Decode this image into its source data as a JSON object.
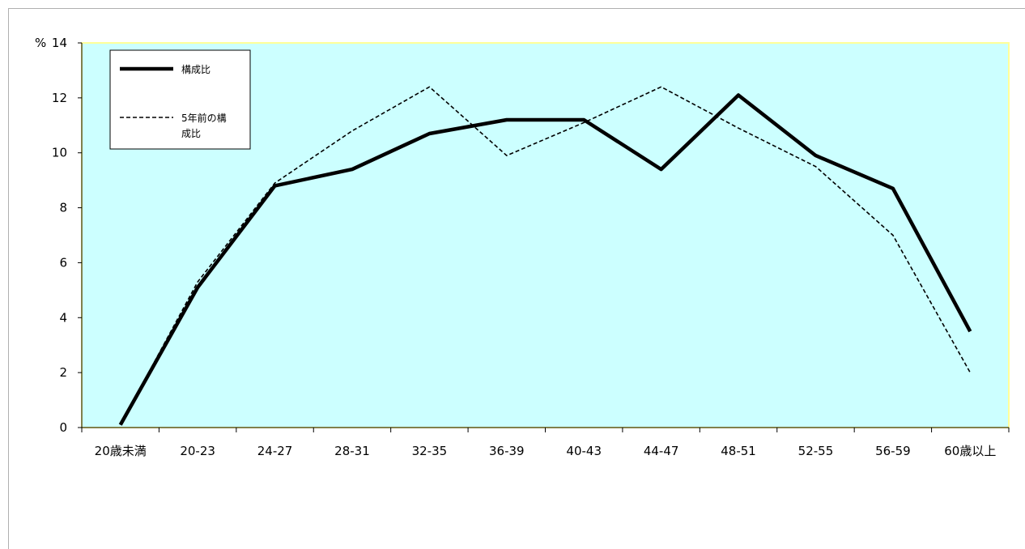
{
  "chart_data": {
    "type": "line",
    "title": "",
    "xlabel": "",
    "ylabel": "%",
    "ylim": [
      0,
      14
    ],
    "yticks": [
      0,
      2,
      4,
      6,
      8,
      10,
      12,
      14
    ],
    "categories": [
      "20歳未満",
      "20-23",
      "24-27",
      "28-31",
      "32-35",
      "36-39",
      "40-43",
      "44-47",
      "48-51",
      "52-55",
      "56-59",
      "60歳以上"
    ],
    "series": [
      {
        "name": "構成比",
        "style": "solid-thick",
        "color": "#000000",
        "values": [
          0.1,
          5.1,
          8.8,
          9.4,
          10.7,
          11.2,
          11.2,
          9.4,
          12.1,
          9.9,
          8.7,
          3.5
        ]
      },
      {
        "name": "5年前の構成比",
        "style": "dashed-thin",
        "color": "#000000",
        "values": [
          0.1,
          5.3,
          8.9,
          10.8,
          12.4,
          9.9,
          11.1,
          12.4,
          10.9,
          9.5,
          7.0,
          2.0
        ]
      }
    ],
    "grid": false,
    "legend_position": "top-left",
    "colors": {
      "plot_background": "#ccffff",
      "plot_border": "#ffff99",
      "axis": "#000000"
    }
  }
}
